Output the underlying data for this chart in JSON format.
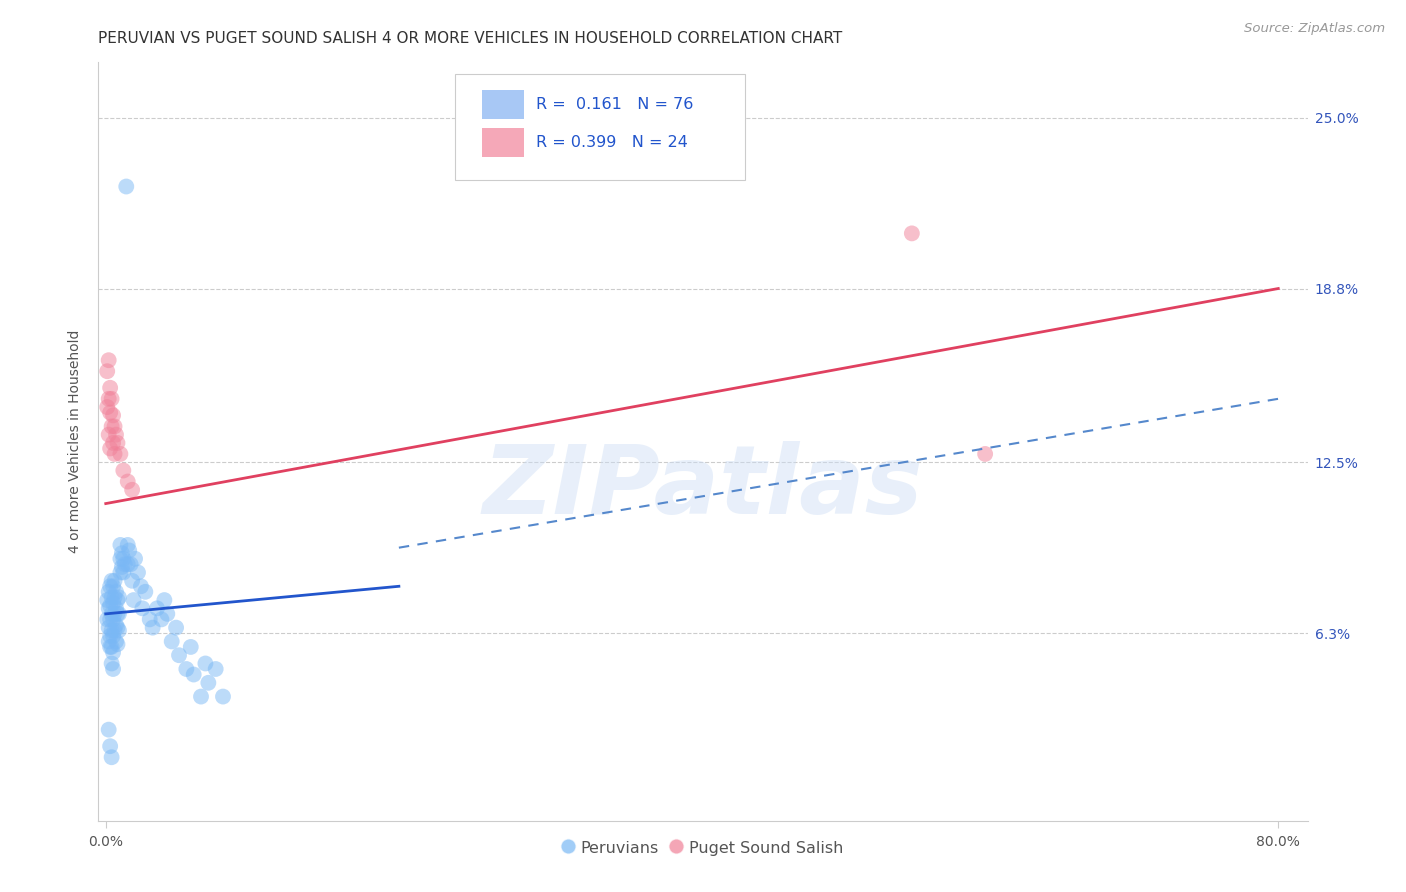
{
  "title": "PERUVIAN VS PUGET SOUND SALISH 4 OR MORE VEHICLES IN HOUSEHOLD CORRELATION CHART",
  "source": "Source: ZipAtlas.com",
  "ylabel": "4 or more Vehicles in Household",
  "ytick_labels": [
    "6.3%",
    "12.5%",
    "18.8%",
    "25.0%"
  ],
  "ytick_values": [
    0.063,
    0.125,
    0.188,
    0.25
  ],
  "xlim": [
    -0.005,
    0.82
  ],
  "ylim": [
    -0.005,
    0.27
  ],
  "watermark": "ZIPatlas",
  "blue_color": "#7ab8f5",
  "pink_color": "#f08098",
  "blue_scatter": [
    [
      0.001,
      0.075
    ],
    [
      0.001,
      0.068
    ],
    [
      0.002,
      0.078
    ],
    [
      0.002,
      0.072
    ],
    [
      0.002,
      0.065
    ],
    [
      0.002,
      0.06
    ],
    [
      0.003,
      0.08
    ],
    [
      0.003,
      0.073
    ],
    [
      0.003,
      0.068
    ],
    [
      0.003,
      0.062
    ],
    [
      0.003,
      0.058
    ],
    [
      0.004,
      0.082
    ],
    [
      0.004,
      0.076
    ],
    [
      0.004,
      0.07
    ],
    [
      0.004,
      0.064
    ],
    [
      0.004,
      0.058
    ],
    [
      0.004,
      0.052
    ],
    [
      0.005,
      0.08
    ],
    [
      0.005,
      0.074
    ],
    [
      0.005,
      0.068
    ],
    [
      0.005,
      0.062
    ],
    [
      0.005,
      0.056
    ],
    [
      0.005,
      0.05
    ],
    [
      0.006,
      0.082
    ],
    [
      0.006,
      0.076
    ],
    [
      0.006,
      0.07
    ],
    [
      0.006,
      0.064
    ],
    [
      0.007,
      0.078
    ],
    [
      0.007,
      0.072
    ],
    [
      0.007,
      0.066
    ],
    [
      0.007,
      0.06
    ],
    [
      0.008,
      0.075
    ],
    [
      0.008,
      0.07
    ],
    [
      0.008,
      0.065
    ],
    [
      0.008,
      0.059
    ],
    [
      0.009,
      0.076
    ],
    [
      0.009,
      0.07
    ],
    [
      0.009,
      0.064
    ],
    [
      0.01,
      0.095
    ],
    [
      0.01,
      0.09
    ],
    [
      0.01,
      0.085
    ],
    [
      0.011,
      0.092
    ],
    [
      0.011,
      0.087
    ],
    [
      0.012,
      0.09
    ],
    [
      0.012,
      0.085
    ],
    [
      0.013,
      0.088
    ],
    [
      0.014,
      0.225
    ],
    [
      0.015,
      0.095
    ],
    [
      0.015,
      0.088
    ],
    [
      0.016,
      0.093
    ],
    [
      0.017,
      0.088
    ],
    [
      0.018,
      0.082
    ],
    [
      0.019,
      0.075
    ],
    [
      0.02,
      0.09
    ],
    [
      0.022,
      0.085
    ],
    [
      0.024,
      0.08
    ],
    [
      0.025,
      0.072
    ],
    [
      0.027,
      0.078
    ],
    [
      0.03,
      0.068
    ],
    [
      0.032,
      0.065
    ],
    [
      0.035,
      0.072
    ],
    [
      0.038,
      0.068
    ],
    [
      0.04,
      0.075
    ],
    [
      0.042,
      0.07
    ],
    [
      0.045,
      0.06
    ],
    [
      0.048,
      0.065
    ],
    [
      0.05,
      0.055
    ],
    [
      0.055,
      0.05
    ],
    [
      0.058,
      0.058
    ],
    [
      0.06,
      0.048
    ],
    [
      0.065,
      0.04
    ],
    [
      0.068,
      0.052
    ],
    [
      0.07,
      0.045
    ],
    [
      0.075,
      0.05
    ],
    [
      0.08,
      0.04
    ],
    [
      0.002,
      0.028
    ],
    [
      0.003,
      0.022
    ],
    [
      0.004,
      0.018
    ]
  ],
  "pink_scatter": [
    [
      0.001,
      0.158
    ],
    [
      0.001,
      0.145
    ],
    [
      0.002,
      0.162
    ],
    [
      0.002,
      0.148
    ],
    [
      0.002,
      0.135
    ],
    [
      0.003,
      0.152
    ],
    [
      0.003,
      0.143
    ],
    [
      0.003,
      0.13
    ],
    [
      0.004,
      0.148
    ],
    [
      0.004,
      0.138
    ],
    [
      0.005,
      0.142
    ],
    [
      0.005,
      0.132
    ],
    [
      0.006,
      0.138
    ],
    [
      0.006,
      0.128
    ],
    [
      0.007,
      0.135
    ],
    [
      0.008,
      0.132
    ],
    [
      0.01,
      0.128
    ],
    [
      0.012,
      0.122
    ],
    [
      0.015,
      0.118
    ],
    [
      0.018,
      0.115
    ],
    [
      0.55,
      0.208
    ],
    [
      0.6,
      0.128
    ]
  ],
  "blue_line": [
    [
      0.0,
      0.07
    ],
    [
      0.2,
      0.08
    ]
  ],
  "pink_line": [
    [
      0.0,
      0.11
    ],
    [
      0.8,
      0.188
    ]
  ],
  "dashed_line": [
    [
      0.2,
      0.094
    ],
    [
      0.8,
      0.148
    ]
  ],
  "title_fontsize": 11,
  "source_fontsize": 9.5,
  "ylabel_fontsize": 10,
  "tick_fontsize": 10,
  "legend_r1": "R =  0.161   N = 76",
  "legend_r2": "R = 0.399   N = 24"
}
